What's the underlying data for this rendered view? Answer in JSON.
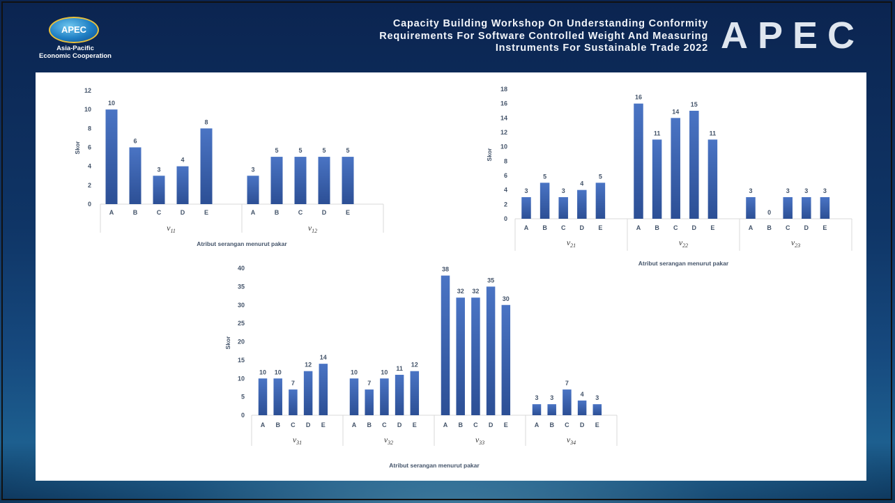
{
  "header": {
    "logo_text": "APEC",
    "logo_sub_1": "Asia-Pacific",
    "logo_sub_2": "Economic Cooperation",
    "title_line1": "Capacity Building Workshop On Understanding Conformity",
    "title_line2": "Requirements For Software Controlled Weight And Measuring",
    "title_line3": "Instruments For Sustainable Trade 2022",
    "big_logo": "APEC"
  },
  "colors": {
    "bar_top": "#4a74c4",
    "bar_bottom": "#2c4f95",
    "text": "#44546a",
    "axis": "#d9d9d9"
  },
  "chart_data": [
    {
      "type": "bar",
      "ylabel": "Skor",
      "xlabel": "Atribut serangan menurut pakar",
      "ylim": [
        0,
        12
      ],
      "yticks": [
        0,
        2,
        4,
        6,
        8,
        10,
        12
      ],
      "categories": [
        "A",
        "B",
        "C",
        "D",
        "E"
      ],
      "groups": [
        {
          "name": "v11",
          "values": [
            10,
            6,
            3,
            4,
            8
          ]
        },
        {
          "name": "v12",
          "values": [
            3,
            5,
            5,
            5,
            5
          ]
        }
      ]
    },
    {
      "type": "bar",
      "ylabel": "Skor",
      "xlabel": "Atribut serangan menurut pakar",
      "ylim": [
        0,
        18
      ],
      "yticks": [
        0,
        2,
        4,
        6,
        8,
        10,
        12,
        14,
        16,
        18
      ],
      "categories": [
        "A",
        "B",
        "C",
        "D",
        "E"
      ],
      "groups": [
        {
          "name": "v21",
          "values": [
            3,
            5,
            3,
            4,
            5
          ]
        },
        {
          "name": "v22",
          "values": [
            16,
            11,
            14,
            15,
            11
          ]
        },
        {
          "name": "v23",
          "values": [
            3,
            0,
            3,
            3,
            3
          ]
        }
      ]
    },
    {
      "type": "bar",
      "ylabel": "Skor",
      "xlabel": "Atribut serangan menurut pakar",
      "ylim": [
        0,
        40
      ],
      "yticks": [
        0,
        5,
        10,
        15,
        20,
        25,
        30,
        35,
        40
      ],
      "categories": [
        "A",
        "B",
        "C",
        "D",
        "E"
      ],
      "groups": [
        {
          "name": "v31",
          "values": [
            10,
            10,
            7,
            12,
            14
          ]
        },
        {
          "name": "v32",
          "values": [
            10,
            7,
            10,
            11,
            12
          ]
        },
        {
          "name": "v33",
          "values": [
            38,
            32,
            32,
            35,
            30
          ]
        },
        {
          "name": "v34",
          "values": [
            3,
            3,
            7,
            4,
            3
          ]
        }
      ]
    }
  ]
}
